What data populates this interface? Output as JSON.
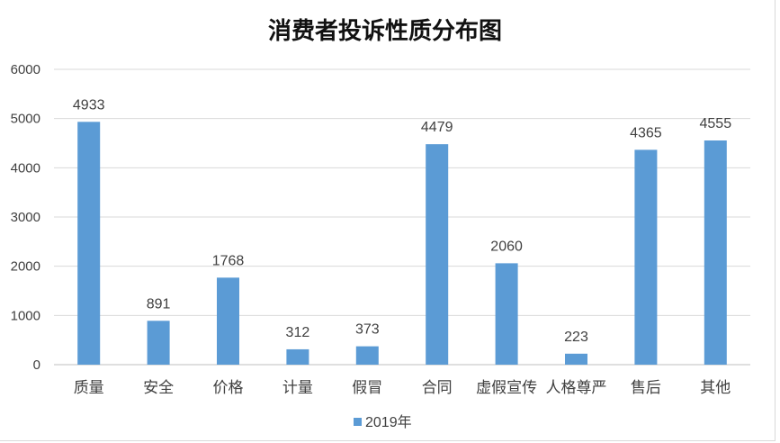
{
  "chart_data": {
    "type": "bar",
    "title": "消费者投诉性质分布图",
    "xlabel": "",
    "ylabel": "",
    "categories": [
      "质量",
      "安全",
      "价格",
      "计量",
      "假冒",
      "合同",
      "虚假宣传",
      "人格尊严",
      "售后",
      "其他"
    ],
    "series": [
      {
        "name": "2019年",
        "color": "#5b9bd5",
        "values": [
          4933,
          891,
          1768,
          312,
          373,
          4479,
          2060,
          223,
          4365,
          4555
        ]
      }
    ],
    "ylim": [
      0,
      6000
    ],
    "yticks": [
      0,
      1000,
      2000,
      3000,
      4000,
      5000,
      6000
    ],
    "grid": true,
    "legend_position": "bottom",
    "data_labels": true
  }
}
